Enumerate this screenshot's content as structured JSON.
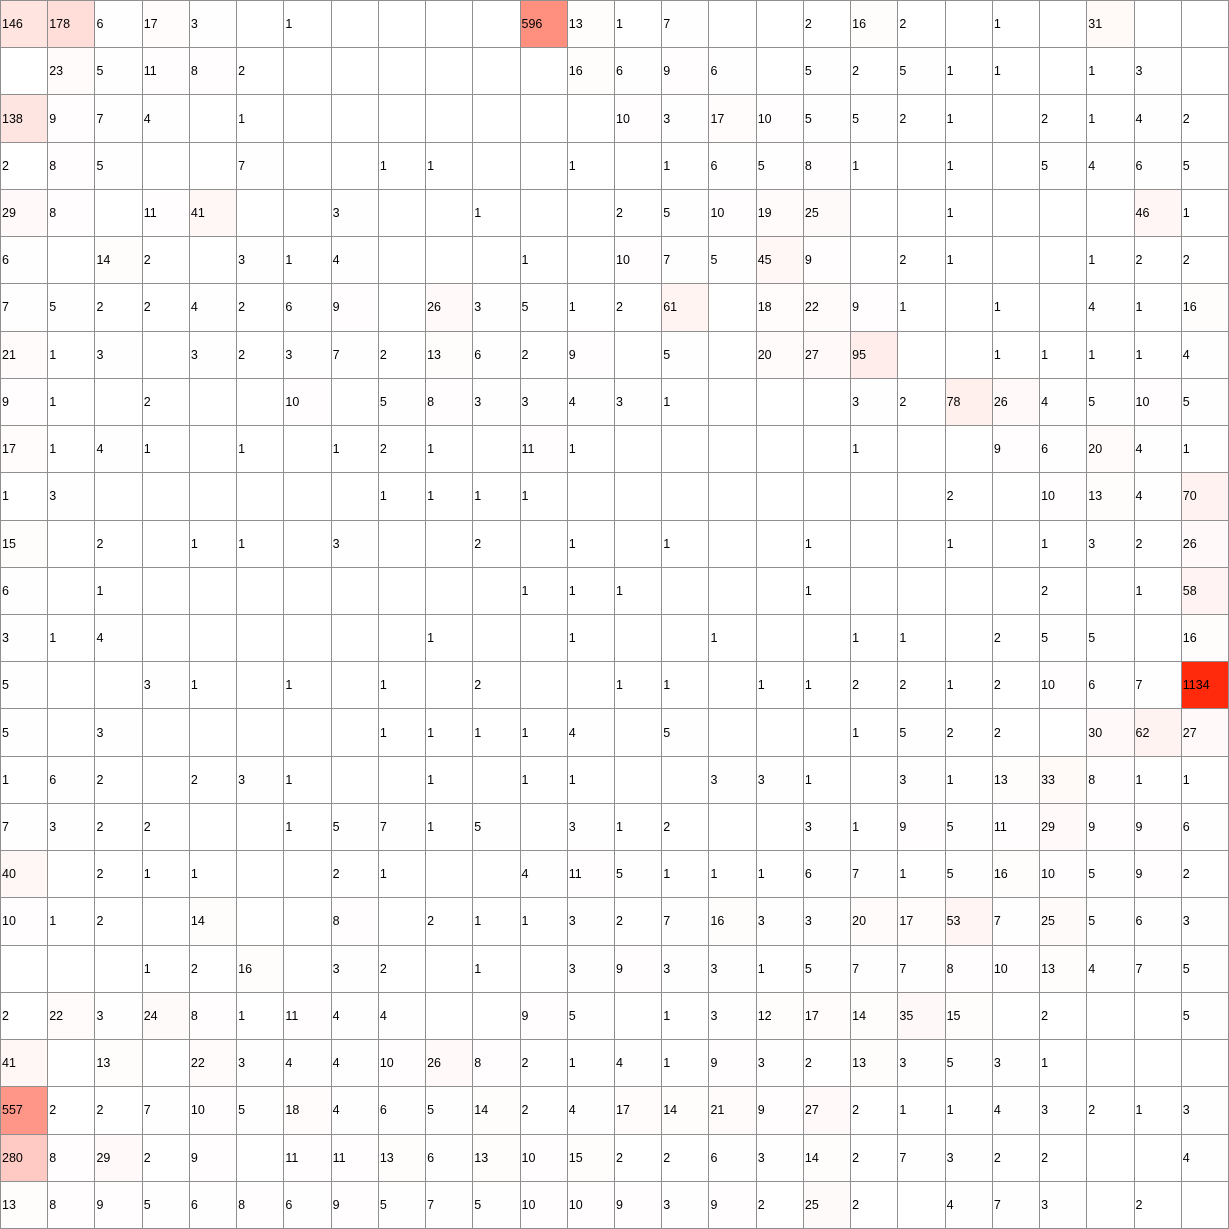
{
  "chart_data": {
    "type": "heatmap",
    "colors": {
      "low": "#ffffff",
      "high": "#ff2a0c"
    },
    "max_value": 1134,
    "rows": [
      [
        146,
        178,
        6,
        17,
        3,
        null,
        1,
        null,
        null,
        null,
        null,
        596,
        13,
        1,
        7,
        null,
        null,
        2,
        16,
        2,
        null,
        1,
        null,
        31,
        null,
        null
      ],
      [
        null,
        23,
        5,
        11,
        8,
        2,
        null,
        null,
        null,
        null,
        null,
        null,
        16,
        6,
        9,
        6,
        null,
        5,
        2,
        5,
        1,
        1,
        null,
        1,
        3,
        null
      ],
      [
        138,
        9,
        7,
        4,
        null,
        1,
        null,
        null,
        null,
        null,
        null,
        null,
        null,
        10,
        3,
        17,
        10,
        5,
        5,
        2,
        1,
        null,
        2,
        1,
        4,
        2
      ],
      [
        2,
        8,
        5,
        null,
        null,
        7,
        null,
        null,
        1,
        1,
        null,
        null,
        1,
        null,
        1,
        6,
        5,
        8,
        1,
        null,
        1,
        null,
        5,
        4,
        6,
        5
      ],
      [
        29,
        8,
        null,
        11,
        41,
        null,
        null,
        3,
        null,
        null,
        1,
        null,
        null,
        2,
        5,
        10,
        19,
        25,
        null,
        null,
        1,
        null,
        null,
        null,
        46,
        1
      ],
      [
        6,
        null,
        14,
        2,
        null,
        3,
        1,
        4,
        null,
        null,
        null,
        1,
        null,
        10,
        7,
        5,
        45,
        9,
        null,
        2,
        1,
        null,
        null,
        1,
        2,
        2
      ],
      [
        7,
        5,
        2,
        2,
        4,
        2,
        6,
        9,
        null,
        26,
        3,
        5,
        1,
        2,
        61,
        null,
        18,
        22,
        9,
        1,
        null,
        1,
        null,
        4,
        1,
        16
      ],
      [
        21,
        1,
        3,
        null,
        3,
        2,
        3,
        7,
        2,
        13,
        6,
        2,
        9,
        null,
        5,
        null,
        20,
        27,
        95,
        null,
        null,
        1,
        1,
        1,
        1,
        4
      ],
      [
        9,
        1,
        null,
        2,
        null,
        null,
        10,
        null,
        5,
        8,
        3,
        3,
        4,
        3,
        1,
        null,
        null,
        null,
        3,
        2,
        78,
        26,
        4,
        5,
        10,
        5
      ],
      [
        17,
        1,
        4,
        1,
        null,
        1,
        null,
        1,
        2,
        1,
        null,
        11,
        1,
        null,
        null,
        null,
        null,
        null,
        1,
        null,
        null,
        9,
        6,
        20,
        4,
        1
      ],
      [
        1,
        3,
        null,
        null,
        null,
        null,
        null,
        null,
        1,
        1,
        1,
        1,
        null,
        null,
        null,
        null,
        null,
        null,
        null,
        null,
        2,
        null,
        10,
        13,
        4,
        70
      ],
      [
        15,
        null,
        2,
        null,
        1,
        1,
        null,
        3,
        null,
        null,
        2,
        null,
        1,
        null,
        1,
        null,
        null,
        1,
        null,
        null,
        1,
        null,
        1,
        3,
        2,
        26
      ],
      [
        6,
        null,
        1,
        null,
        null,
        null,
        null,
        null,
        null,
        null,
        null,
        1,
        1,
        1,
        null,
        null,
        null,
        1,
        null,
        null,
        null,
        null,
        2,
        null,
        1,
        58
      ],
      [
        3,
        1,
        4,
        null,
        null,
        null,
        null,
        null,
        null,
        1,
        null,
        null,
        1,
        null,
        null,
        1,
        null,
        null,
        1,
        1,
        null,
        2,
        5,
        5,
        null,
        16
      ],
      [
        5,
        null,
        null,
        3,
        1,
        null,
        1,
        null,
        1,
        null,
        2,
        null,
        null,
        1,
        1,
        null,
        1,
        1,
        2,
        2,
        1,
        2,
        10,
        6,
        7,
        1134
      ],
      [
        5,
        null,
        3,
        null,
        null,
        null,
        null,
        null,
        1,
        1,
        1,
        1,
        4,
        null,
        5,
        null,
        null,
        null,
        1,
        5,
        2,
        2,
        null,
        30,
        62,
        27
      ],
      [
        1,
        6,
        2,
        null,
        2,
        3,
        1,
        null,
        null,
        1,
        null,
        1,
        1,
        null,
        null,
        3,
        3,
        1,
        null,
        3,
        1,
        13,
        33,
        8,
        1,
        1
      ],
      [
        7,
        3,
        2,
        2,
        null,
        null,
        1,
        5,
        7,
        1,
        5,
        null,
        3,
        1,
        2,
        null,
        null,
        3,
        1,
        9,
        5,
        11,
        29,
        9,
        9,
        6
      ],
      [
        40,
        null,
        2,
        1,
        1,
        null,
        null,
        2,
        1,
        null,
        null,
        4,
        11,
        5,
        1,
        1,
        1,
        6,
        7,
        1,
        5,
        16,
        10,
        5,
        9,
        2
      ],
      [
        10,
        1,
        2,
        null,
        14,
        null,
        null,
        8,
        null,
        2,
        1,
        1,
        3,
        2,
        7,
        16,
        3,
        3,
        20,
        17,
        53,
        7,
        25,
        5,
        6,
        3
      ],
      [
        null,
        null,
        null,
        1,
        2,
        16,
        null,
        3,
        2,
        null,
        1,
        null,
        3,
        9,
        3,
        3,
        1,
        5,
        7,
        7,
        8,
        10,
        13,
        4,
        7,
        5
      ],
      [
        2,
        22,
        3,
        24,
        8,
        1,
        11,
        4,
        4,
        null,
        null,
        9,
        5,
        null,
        1,
        3,
        12,
        17,
        14,
        35,
        15,
        null,
        2,
        null,
        null,
        5
      ],
      [
        41,
        null,
        13,
        null,
        22,
        3,
        4,
        4,
        10,
        26,
        8,
        2,
        1,
        4,
        1,
        9,
        3,
        2,
        13,
        3,
        5,
        3,
        1,
        null,
        null,
        null
      ],
      [
        557,
        2,
        2,
        7,
        10,
        5,
        18,
        4,
        6,
        5,
        14,
        2,
        4,
        17,
        14,
        21,
        9,
        27,
        2,
        1,
        1,
        4,
        3,
        2,
        1,
        3
      ],
      [
        280,
        8,
        29,
        2,
        9,
        null,
        11,
        11,
        13,
        6,
        13,
        10,
        15,
        2,
        2,
        6,
        3,
        14,
        2,
        7,
        3,
        2,
        2,
        null,
        null,
        4
      ],
      [
        13,
        8,
        9,
        5,
        6,
        8,
        6,
        9,
        5,
        7,
        5,
        10,
        10,
        9,
        3,
        9,
        2,
        25,
        2,
        null,
        4,
        7,
        3,
        null,
        2,
        null
      ]
    ]
  }
}
